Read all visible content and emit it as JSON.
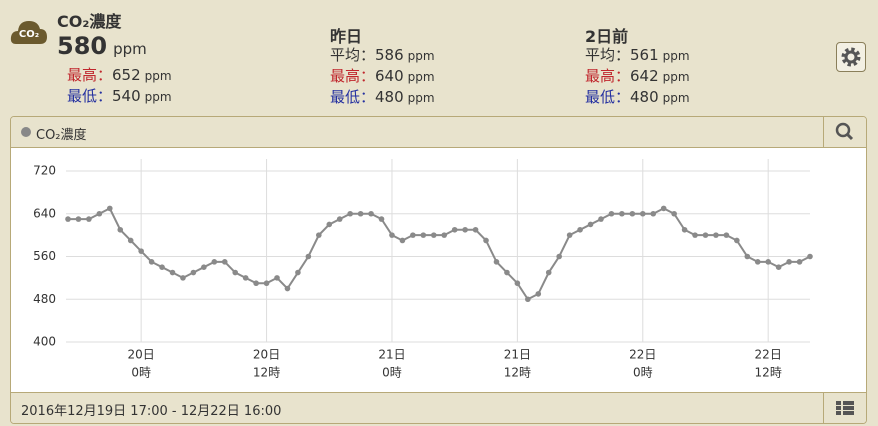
{
  "header": {
    "icon": "CO₂",
    "current": {
      "title": "CO₂濃度",
      "value": 580,
      "unit": "ppm",
      "stats": [
        {
          "label": "最高：",
          "value": 652,
          "unit": "ppm"
        },
        {
          "label": "最低：",
          "value": 540,
          "unit": "ppm"
        }
      ]
    },
    "columns": [
      {
        "title": "昨日",
        "stats": [
          {
            "label": "平均：",
            "value": 586,
            "unit": "ppm"
          },
          {
            "label": "最高：",
            "value": 640,
            "unit": "ppm"
          },
          {
            "label": "最低：",
            "value": 480,
            "unit": "ppm"
          }
        ]
      },
      {
        "title": "2日前",
        "stats": [
          {
            "label": "平均：",
            "value": 561,
            "unit": "ppm"
          },
          {
            "label": "最高：",
            "value": 642,
            "unit": "ppm"
          },
          {
            "label": "最低：",
            "value": 480,
            "unit": "ppm"
          }
        ]
      }
    ]
  },
  "panel": {
    "title": "CO₂濃度",
    "footer": "2016年12月19日 17:00 - 12月22日 16:00"
  },
  "chart_data": {
    "type": "line",
    "grid": true,
    "categories": [
      null,
      null,
      null,
      null,
      null,
      null,
      null,
      [
        "20日",
        "0時"
      ],
      null,
      null,
      null,
      null,
      null,
      null,
      null,
      null,
      null,
      null,
      null,
      [
        "20日",
        "12時"
      ],
      null,
      null,
      null,
      null,
      null,
      null,
      null,
      null,
      null,
      null,
      null,
      [
        "21日",
        "0時"
      ],
      null,
      null,
      null,
      null,
      null,
      null,
      null,
      null,
      null,
      null,
      null,
      [
        "21日",
        "12時"
      ],
      null,
      null,
      null,
      null,
      null,
      null,
      null,
      null,
      null,
      null,
      null,
      [
        "22日",
        "0時"
      ],
      null,
      null,
      null,
      null,
      null,
      null,
      null,
      null,
      null,
      null,
      null,
      [
        "22日",
        "12時"
      ],
      null,
      null,
      null,
      null
    ],
    "series": [
      {
        "name": "CO₂濃度",
        "color": "#8a8a8a",
        "values": [
          630,
          630,
          630,
          640,
          650,
          610,
          590,
          570,
          550,
          540,
          530,
          520,
          530,
          540,
          550,
          550,
          530,
          520,
          510,
          510,
          520,
          500,
          530,
          560,
          600,
          620,
          630,
          640,
          640,
          640,
          630,
          600,
          590,
          600,
          600,
          600,
          600,
          610,
          610,
          610,
          590,
          550,
          530,
          510,
          480,
          490,
          530,
          560,
          600,
          610,
          620,
          630,
          640,
          640,
          640,
          640,
          640,
          650,
          640,
          610,
          600,
          600,
          600,
          600,
          590,
          560,
          550,
          550,
          540,
          550,
          550,
          560
        ]
      }
    ],
    "ylim": [
      400,
      720
    ],
    "yticks": [
      400,
      480,
      560,
      640,
      720
    ]
  }
}
